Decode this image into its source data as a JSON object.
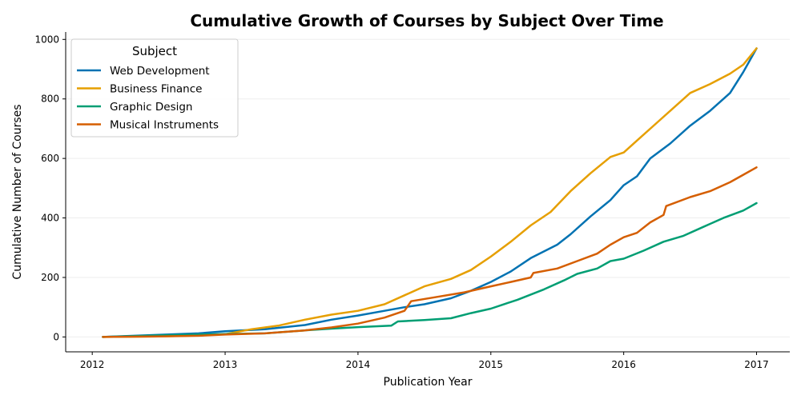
{
  "chart_data": {
    "type": "line",
    "title": "Cumulative Growth of Courses by Subject Over Time",
    "xlabel": "Publication Year",
    "ylabel": "Cumulative Number of Courses",
    "xlim": [
      2011.8,
      2017.25
    ],
    "ylim": [
      -50,
      1025
    ],
    "x_ticks": [
      "2012",
      "2013",
      "2014",
      "2015",
      "2016",
      "2017"
    ],
    "y_ticks": [
      "0",
      "200",
      "400",
      "600",
      "800",
      "1000"
    ],
    "grid": "horizontal",
    "legend": {
      "title": "Subject",
      "position": "top-left"
    },
    "series": [
      {
        "name": "Web Development",
        "color": "#0072B2",
        "points": [
          [
            2012.08,
            0
          ],
          [
            2012.5,
            7
          ],
          [
            2012.8,
            12
          ],
          [
            2013.0,
            19
          ],
          [
            2013.3,
            26
          ],
          [
            2013.6,
            40
          ],
          [
            2013.8,
            58
          ],
          [
            2014.0,
            72
          ],
          [
            2014.2,
            88
          ],
          [
            2014.35,
            100
          ],
          [
            2014.5,
            110
          ],
          [
            2014.7,
            130
          ],
          [
            2014.85,
            155
          ],
          [
            2015.0,
            185
          ],
          [
            2015.15,
            220
          ],
          [
            2015.3,
            265
          ],
          [
            2015.5,
            310
          ],
          [
            2015.6,
            345
          ],
          [
            2015.75,
            405
          ],
          [
            2015.9,
            460
          ],
          [
            2016.0,
            510
          ],
          [
            2016.1,
            540
          ],
          [
            2016.2,
            600
          ],
          [
            2016.35,
            650
          ],
          [
            2016.5,
            710
          ],
          [
            2016.65,
            760
          ],
          [
            2016.8,
            820
          ],
          [
            2016.9,
            890
          ],
          [
            2017.0,
            970
          ]
        ]
      },
      {
        "name": "Business Finance",
        "color": "#E69F00",
        "points": [
          [
            2012.08,
            0
          ],
          [
            2012.5,
            2
          ],
          [
            2012.8,
            5
          ],
          [
            2013.0,
            9
          ],
          [
            2013.2,
            26
          ],
          [
            2013.4,
            38
          ],
          [
            2013.6,
            58
          ],
          [
            2013.8,
            75
          ],
          [
            2014.0,
            88
          ],
          [
            2014.2,
            110
          ],
          [
            2014.35,
            140
          ],
          [
            2014.5,
            170
          ],
          [
            2014.7,
            195
          ],
          [
            2014.85,
            225
          ],
          [
            2015.0,
            270
          ],
          [
            2015.15,
            320
          ],
          [
            2015.3,
            375
          ],
          [
            2015.45,
            420
          ],
          [
            2015.6,
            490
          ],
          [
            2015.75,
            550
          ],
          [
            2015.9,
            605
          ],
          [
            2016.0,
            620
          ],
          [
            2016.1,
            660
          ],
          [
            2016.25,
            720
          ],
          [
            2016.4,
            780
          ],
          [
            2016.5,
            820
          ],
          [
            2016.65,
            850
          ],
          [
            2016.8,
            885
          ],
          [
            2016.9,
            915
          ],
          [
            2017.0,
            970
          ]
        ]
      },
      {
        "name": "Graphic Design",
        "color": "#009E73",
        "points": [
          [
            2012.08,
            0
          ],
          [
            2012.5,
            5
          ],
          [
            2012.8,
            8
          ],
          [
            2013.0,
            10
          ],
          [
            2013.3,
            12
          ],
          [
            2013.6,
            22
          ],
          [
            2013.8,
            28
          ],
          [
            2014.0,
            33
          ],
          [
            2014.25,
            38
          ],
          [
            2014.3,
            52
          ],
          [
            2014.5,
            57
          ],
          [
            2014.7,
            63
          ],
          [
            2014.85,
            80
          ],
          [
            2015.0,
            95
          ],
          [
            2015.2,
            125
          ],
          [
            2015.4,
            160
          ],
          [
            2015.55,
            190
          ],
          [
            2015.65,
            212
          ],
          [
            2015.8,
            230
          ],
          [
            2015.9,
            255
          ],
          [
            2016.0,
            263
          ],
          [
            2016.15,
            290
          ],
          [
            2016.3,
            320
          ],
          [
            2016.45,
            340
          ],
          [
            2016.6,
            370
          ],
          [
            2016.75,
            400
          ],
          [
            2016.9,
            425
          ],
          [
            2017.0,
            450
          ]
        ]
      },
      {
        "name": "Musical Instruments",
        "color": "#D55E00",
        "points": [
          [
            2012.08,
            0
          ],
          [
            2012.5,
            2
          ],
          [
            2012.8,
            4
          ],
          [
            2013.0,
            8
          ],
          [
            2013.3,
            12
          ],
          [
            2013.6,
            22
          ],
          [
            2013.8,
            32
          ],
          [
            2014.0,
            45
          ],
          [
            2014.2,
            65
          ],
          [
            2014.35,
            88
          ],
          [
            2014.4,
            120
          ],
          [
            2014.6,
            135
          ],
          [
            2014.8,
            150
          ],
          [
            2015.0,
            170
          ],
          [
            2015.15,
            185
          ],
          [
            2015.3,
            200
          ],
          [
            2015.32,
            215
          ],
          [
            2015.5,
            230
          ],
          [
            2015.65,
            255
          ],
          [
            2015.8,
            280
          ],
          [
            2015.9,
            310
          ],
          [
            2016.0,
            335
          ],
          [
            2016.1,
            350
          ],
          [
            2016.2,
            385
          ],
          [
            2016.3,
            410
          ],
          [
            2016.32,
            440
          ],
          [
            2016.5,
            470
          ],
          [
            2016.65,
            490
          ],
          [
            2016.8,
            520
          ],
          [
            2016.9,
            545
          ],
          [
            2017.0,
            570
          ]
        ]
      }
    ]
  }
}
